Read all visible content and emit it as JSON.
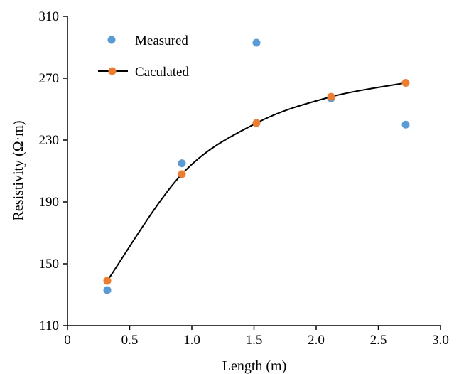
{
  "chart_data": {
    "type": "scatter",
    "title": "",
    "xlabel": "Length (m)",
    "ylabel": "Resistivity (Ω·m)",
    "xlim": [
      0,
      3.0
    ],
    "ylim": [
      110,
      310
    ],
    "xticks": [
      "0",
      "0.5",
      "1.0",
      "1.5",
      "2.0",
      "2.5",
      "3.0"
    ],
    "xtick_values": [
      0,
      0.5,
      1.0,
      1.5,
      2.0,
      2.5,
      3.0
    ],
    "yticks": [
      "110",
      "150",
      "190",
      "230",
      "270",
      "310"
    ],
    "ytick_values": [
      110,
      150,
      190,
      230,
      270,
      310
    ],
    "grid": false,
    "legend": "top-left",
    "series": [
      {
        "name": "Measured",
        "color": "#5b9bd5",
        "marker": "circle",
        "x": [
          0.32,
          0.92,
          1.52,
          2.12,
          2.72
        ],
        "y": [
          133,
          215,
          293,
          257,
          240
        ]
      },
      {
        "name": "Caculated",
        "color": "#ed7d31",
        "marker": "circle",
        "line": "smooth",
        "line_color": "#000000",
        "x": [
          0.32,
          0.92,
          1.52,
          2.12,
          2.72
        ],
        "y": [
          139,
          208,
          241,
          258,
          267
        ]
      }
    ]
  }
}
